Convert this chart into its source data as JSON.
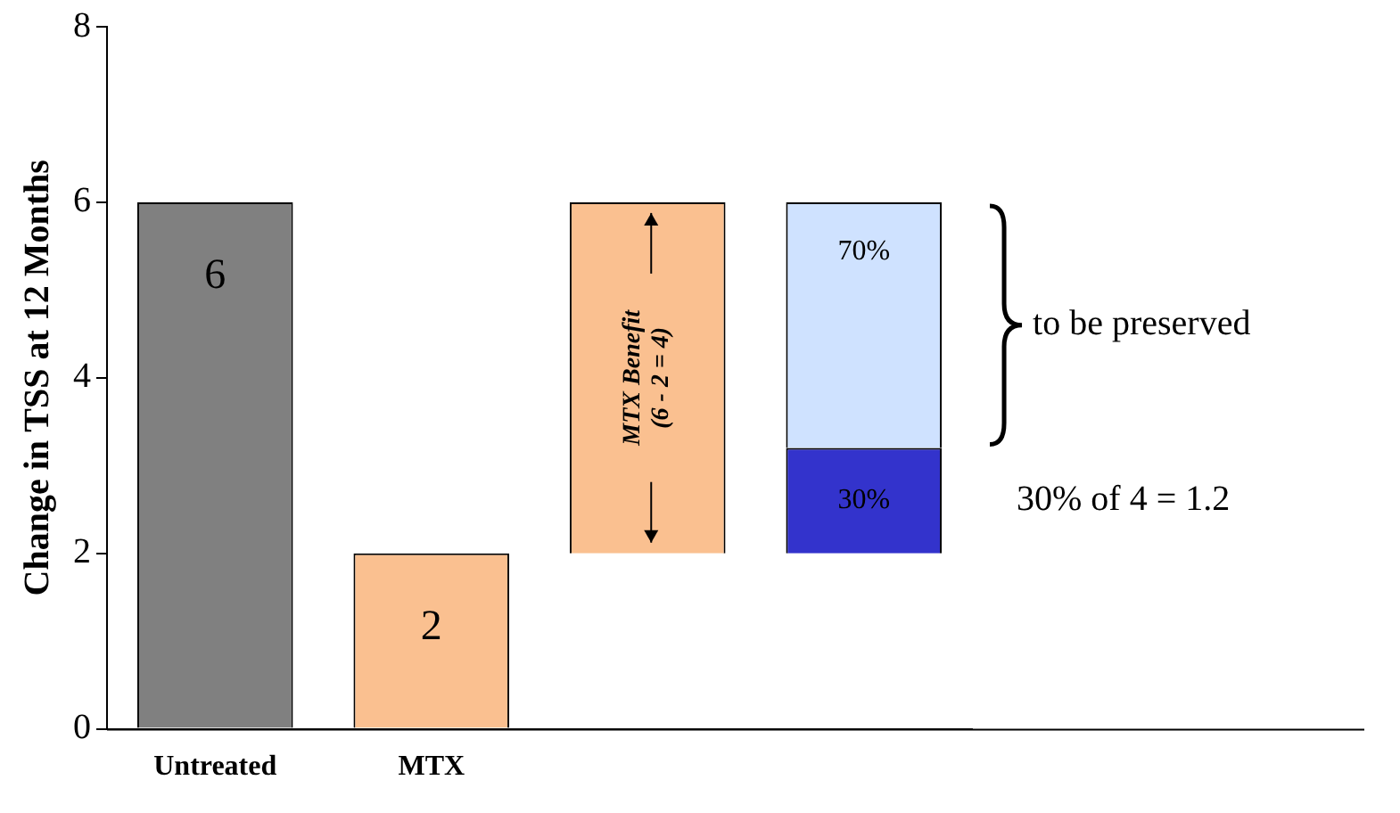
{
  "chart_data": {
    "type": "bar",
    "categories": [
      "Untreated",
      "MTX",
      null,
      null
    ],
    "ylabel": "Change in TSS at 12 Months",
    "series": [
      {
        "colors": [
          "#808080",
          "#fac090",
          "#fac090",
          "#3333cc"
        ],
        "values": [
          6,
          2,
          4,
          1.2
        ],
        "base": [
          0,
          0,
          2,
          2
        ],
        "value_labels": [
          "6",
          "2",
          null,
          null
        ]
      },
      {
        "color": "#cfe2ff",
        "values": [
          null,
          null,
          null,
          2.8
        ],
        "base": [
          null,
          null,
          null,
          3.2
        ]
      }
    ],
    "ylim": [
      0,
      8
    ],
    "yticks": [
      0,
      2,
      4,
      6,
      8
    ],
    "grid": false,
    "legend": false,
    "annotations": [
      "MTX Benefit\n(6 - 2 = 4)",
      "to be preserved",
      "30% of 4 = 1.2",
      "30%",
      "70%"
    ]
  }
}
